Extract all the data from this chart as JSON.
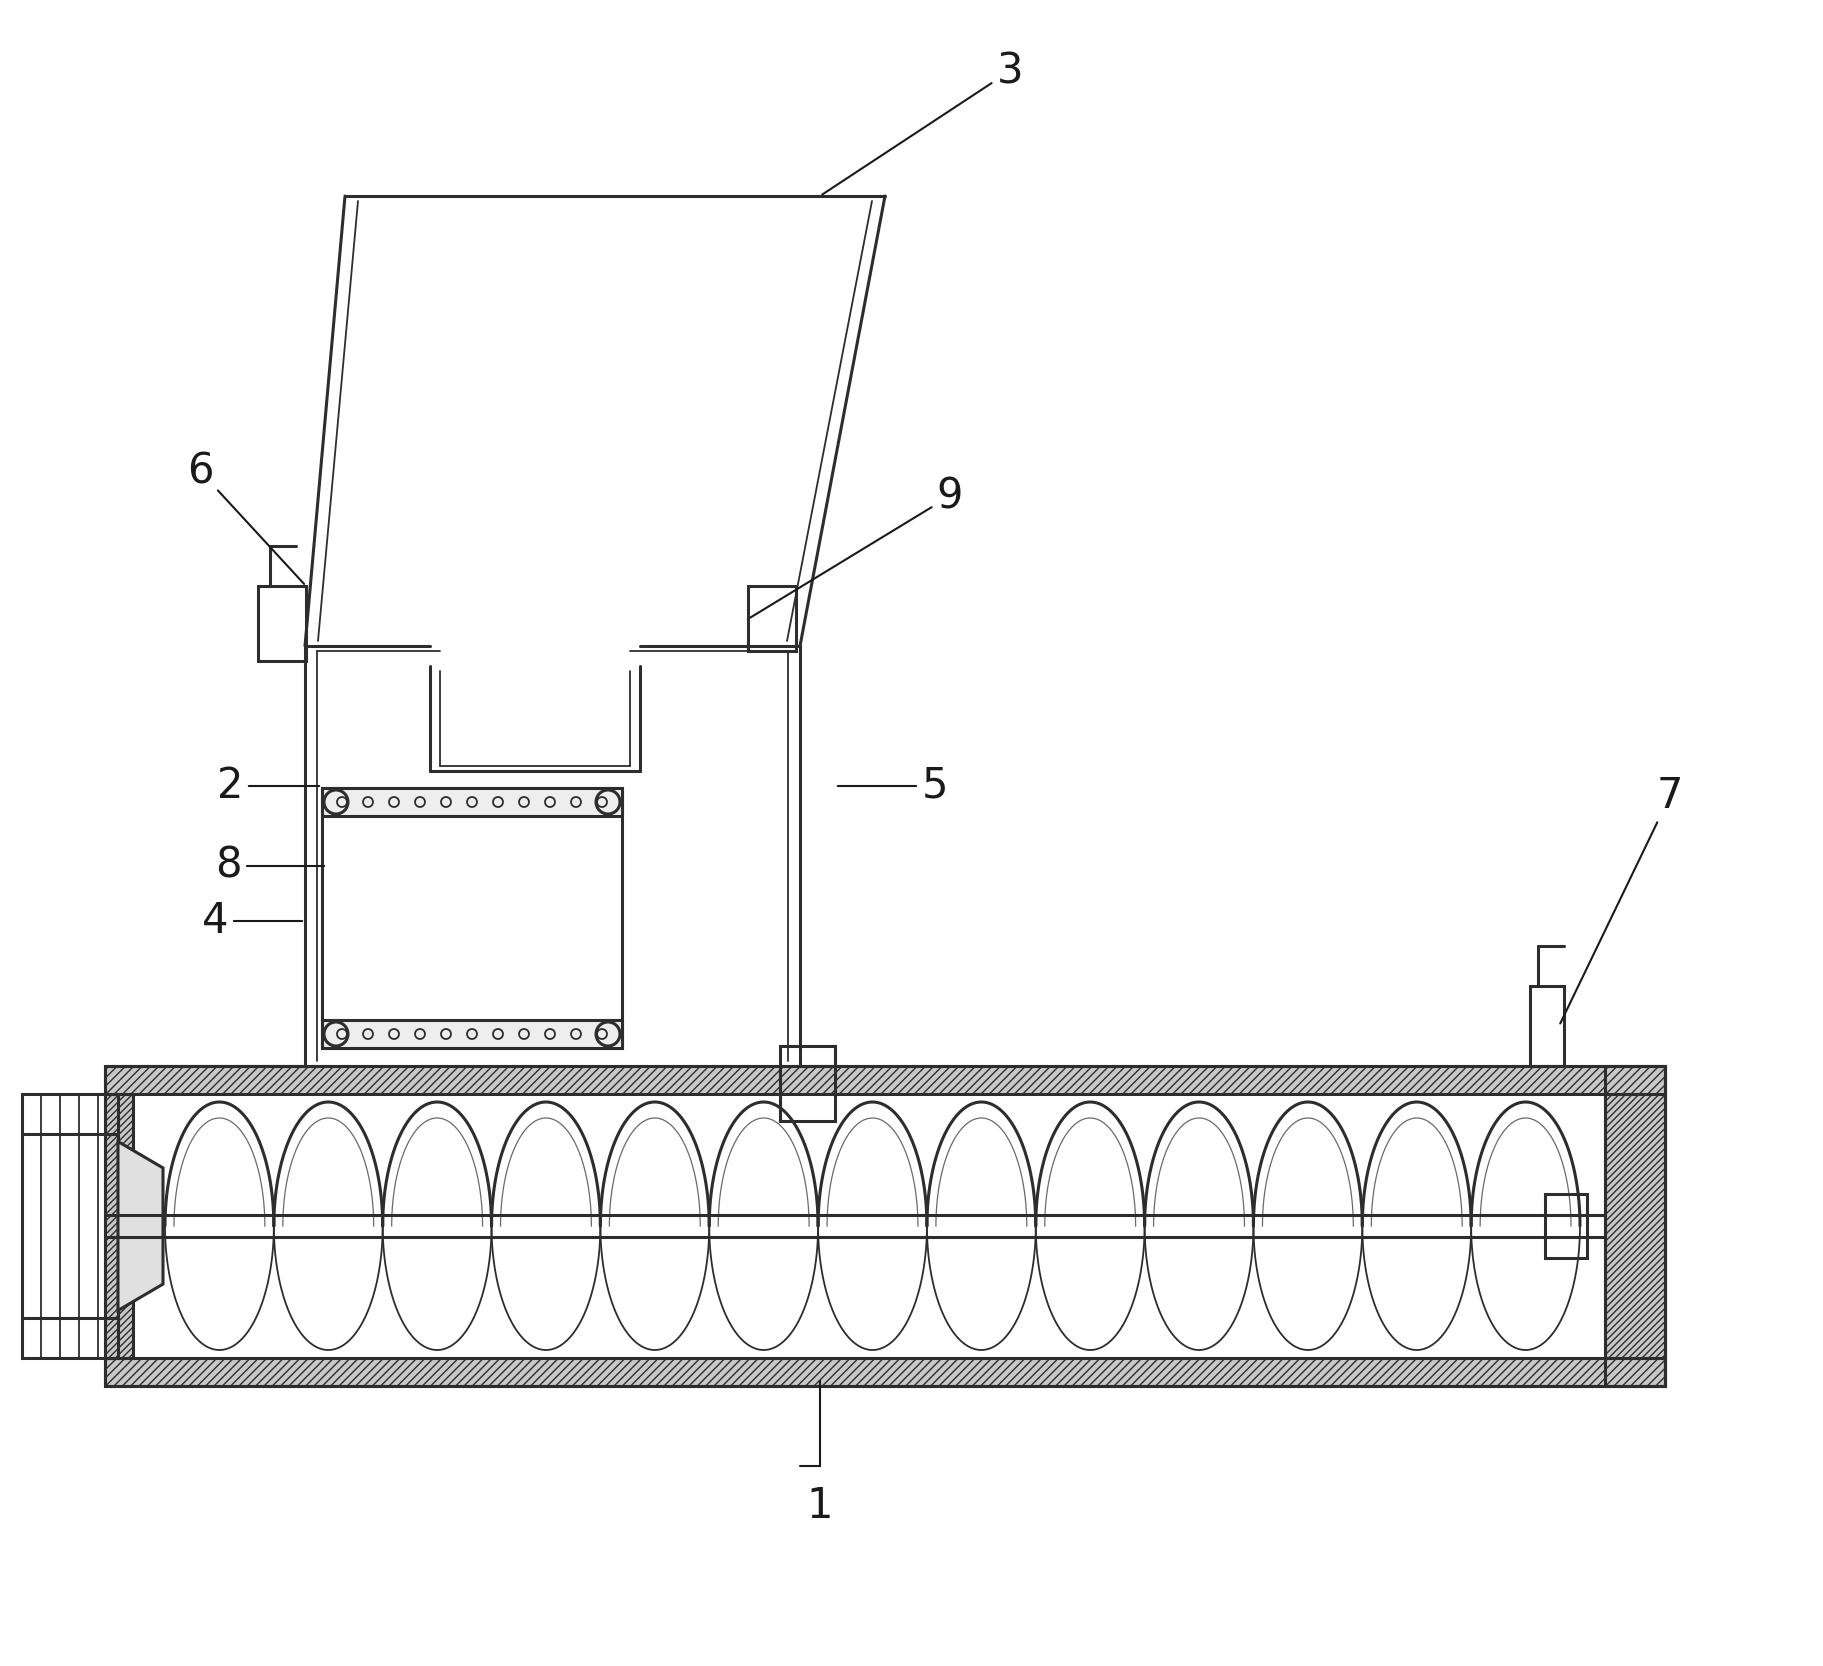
{
  "bg_color": "#ffffff",
  "line_color": "#2d2d2d",
  "figsize": [
    18.24,
    16.66
  ],
  "dpi": 100,
  "lw_main": 2.2,
  "lw_thin": 1.3,
  "lw_ann": 1.5,
  "label_fs": 30
}
